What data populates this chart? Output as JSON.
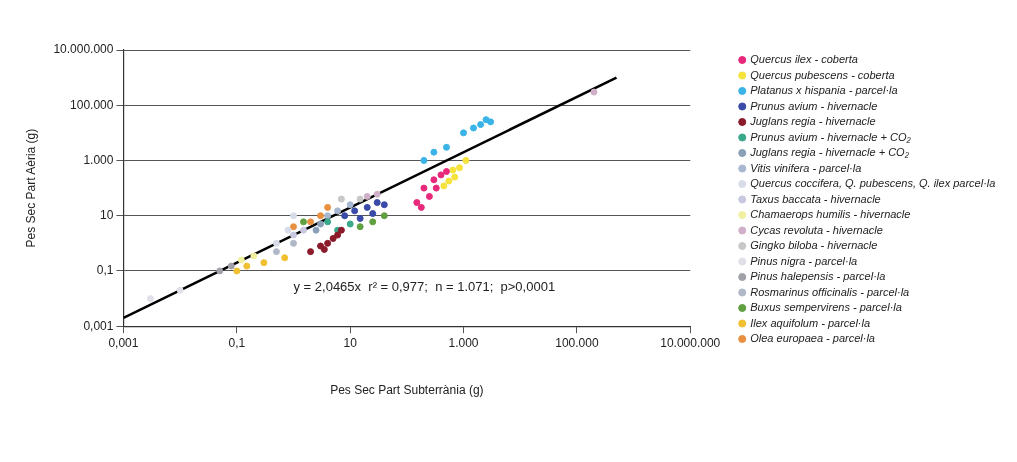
{
  "chart_data": {
    "type": "scatter",
    "xlabel": "Pes Sec Part Subterrània (g)",
    "ylabel": "Pes Sec Part Aèria (g)",
    "log": "xy",
    "grid": "y",
    "legend": "right",
    "marker": "circle",
    "xlim": [
      0.001,
      10000000
    ],
    "ylim": [
      0.001,
      10000000
    ],
    "xticks": [
      {
        "value": 0.001,
        "label": "0,001"
      },
      {
        "value": 0.1,
        "label": "0,1"
      },
      {
        "value": 10,
        "label": "10"
      },
      {
        "value": 1000,
        "label": "1.000"
      },
      {
        "value": 100000,
        "label": "100.000"
      },
      {
        "value": 10000000,
        "label": "10.000.000"
      }
    ],
    "yticks": [
      {
        "value": 0.001,
        "label": "0,001"
      },
      {
        "value": 0.1,
        "label": "0,1"
      },
      {
        "value": 10,
        "label": "10"
      },
      {
        "value": 1000,
        "label": "1.000"
      },
      {
        "value": 100000,
        "label": "100.000"
      },
      {
        "value": 10000000,
        "label": "10.000.000"
      }
    ],
    "annotations": [
      "y = 2,0465x  r² = 0,977;  n = 1.071;  p>0,0001"
    ],
    "series": [
      {
        "name": "Quercus ilex - coberta",
        "color": "#e8287a",
        "x": [
          150,
          200,
          300,
          400,
          250,
          180,
          330,
          500
        ],
        "values": [
          30,
          100,
          200,
          300,
          50,
          20,
          100,
          400
        ]
      },
      {
        "name": "Quercus pubescens - coberta",
        "color": "#f5e23a",
        "x": [
          450,
          650,
          850,
          1100,
          550,
          700
        ],
        "values": [
          120,
          450,
          550,
          1000,
          180,
          250
        ]
      },
      {
        "name": "Platanus x hispania - parcel·la",
        "color": "#3ab4e6",
        "x": [
          200,
          300,
          500,
          1500,
          2000,
          2500,
          1000,
          3000
        ],
        "values": [
          1000,
          2000,
          3000,
          15000,
          20000,
          30000,
          10000,
          25000
        ]
      },
      {
        "name": "Prunus avium - hivernacle",
        "color": "#3a4aa8",
        "x": [
          8,
          12,
          20,
          30,
          40,
          15,
          25
        ],
        "values": [
          10,
          15,
          20,
          30,
          25,
          8,
          12
        ]
      },
      {
        "name": "Juglans regia - hivernacle",
        "color": "#8b1a2a",
        "x": [
          2,
          3,
          4,
          5,
          6,
          3.5,
          7
        ],
        "values": [
          0.5,
          0.8,
          1,
          1.5,
          2,
          0.6,
          3
        ]
      },
      {
        "name": "Prunus avium - hivernacle + CO₂",
        "color": "#3aa88a",
        "x": [
          4,
          6,
          10
        ],
        "values": [
          6,
          3,
          5
        ]
      },
      {
        "name": "Juglans regia - hivernacle + CO₂",
        "color": "#8aa0b8",
        "x": [
          2.5,
          3
        ],
        "values": [
          3,
          5
        ]
      },
      {
        "name": "Vitis vinifera - parcel·la",
        "color": "#a8b8d0",
        "x": [
          6,
          10,
          4
        ],
        "values": [
          15,
          25,
          10
        ]
      },
      {
        "name": "Quercus coccifera, Q. pubescens, Q. ilex parcel·la",
        "color": "#d8dce8",
        "x": [
          0.5,
          0.8,
          1
        ],
        "values": [
          1,
          3,
          10
        ]
      },
      {
        "name": "Taxus baccata - hivernacle",
        "color": "#c8c8e0",
        "x": [
          1,
          1.5
        ],
        "values": [
          2,
          3
        ]
      },
      {
        "name": "Chamaerops humilis - hivernacle",
        "color": "#f0f0a0",
        "x": [
          0.12,
          0.2
        ],
        "values": [
          0.25,
          0.35
        ]
      },
      {
        "name": "Cycas revoluta - hivernacle",
        "color": "#d0b0c8",
        "x": [
          20,
          30,
          200000
        ],
        "values": [
          50,
          60,
          300000
        ]
      },
      {
        "name": "Gingko biloba - hivernacle",
        "color": "#c8c8c8",
        "x": [
          15,
          7
        ],
        "values": [
          40,
          40
        ]
      },
      {
        "name": "Pinus nigra - parcel·la",
        "color": "#e0e0ea",
        "x": [
          0.003,
          0.01
        ],
        "values": [
          0.01,
          0.02
        ]
      },
      {
        "name": "Pinus halepensis - parcel·la",
        "color": "#a0a0a8",
        "x": [
          0.05,
          0.08
        ],
        "values": [
          0.1,
          0.15
        ]
      },
      {
        "name": "Rosmarinus officinalis - parcel·la",
        "color": "#b0b8c8",
        "x": [
          0.5,
          1
        ],
        "values": [
          0.5,
          1
        ]
      },
      {
        "name": "Buxus sempervirens - parcel·la",
        "color": "#60a040",
        "x": [
          1.5,
          15,
          25,
          40
        ],
        "values": [
          6,
          4,
          6,
          10
        ]
      },
      {
        "name": "Ilex aquifolum - parcel·la",
        "color": "#f0c030",
        "x": [
          0.1,
          0.15,
          0.3,
          0.7
        ],
        "values": [
          0.1,
          0.15,
          0.2,
          0.3
        ]
      },
      {
        "name": "Olea europaea - parcel·la",
        "color": "#e89040",
        "x": [
          1,
          2,
          3,
          4
        ],
        "values": [
          4,
          6,
          10,
          20
        ]
      },
      {
        "type": "line",
        "color": "#000000",
        "marker": "none",
        "x": [
          0.001,
          500000
        ],
        "values": [
          0.002,
          1000000
        ]
      }
    ]
  }
}
